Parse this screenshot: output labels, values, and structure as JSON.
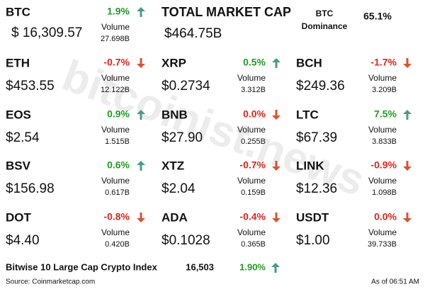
{
  "watermark": "bitcoinist.news",
  "coins": [
    {
      "symbol": "BTC",
      "change": "1.9%",
      "trend": "up",
      "price": "$ 16,309.57",
      "volume_label": "Volume",
      "volume": "27.698B"
    },
    {
      "symbol": "ETH",
      "change": "-0.7%",
      "trend": "down",
      "price": "$453.55",
      "volume_label": "Volume",
      "volume": "12.122B"
    },
    {
      "symbol": "XRP",
      "change": "0.5%",
      "trend": "up",
      "price": "$0.2734",
      "volume_label": "Volume",
      "volume": "3.312B"
    },
    {
      "symbol": "BCH",
      "change": "-1.7%",
      "trend": "down",
      "price": "$249.36",
      "volume_label": "Volume",
      "volume": "3.209B"
    },
    {
      "symbol": "EOS",
      "change": "0.9%",
      "trend": "up",
      "price": "$2.54",
      "volume_label": "Volume",
      "volume": "1.515B"
    },
    {
      "symbol": "BNB",
      "change": "0.0%",
      "trend": "down",
      "price": "$27.90",
      "volume_label": "Volume",
      "volume": "0.255B"
    },
    {
      "symbol": "LTC",
      "change": "7.5%",
      "trend": "up",
      "price": "$67.39",
      "volume_label": "Volume",
      "volume": "3.833B"
    },
    {
      "symbol": "BSV",
      "change": "0.6%",
      "trend": "up",
      "price": "$156.98",
      "volume_label": "Volume",
      "volume": "0.617B"
    },
    {
      "symbol": "XTZ",
      "change": "-0.7%",
      "trend": "down",
      "price": "$2.04",
      "volume_label": "Volume",
      "volume": "0.159B"
    },
    {
      "symbol": "LINK",
      "change": "-0.9%",
      "trend": "down",
      "price": "$12.36",
      "volume_label": "Volume",
      "volume": "1.098B"
    },
    {
      "symbol": "DOT",
      "change": "-0.8%",
      "trend": "down",
      "price": "$4.40",
      "volume_label": "Volume",
      "volume": "0.420B"
    },
    {
      "symbol": "ADA",
      "change": "-0.4%",
      "trend": "down",
      "price": "$0.1028",
      "volume_label": "Volume",
      "volume": "0.365B"
    },
    {
      "symbol": "USDT",
      "change": "0.0%",
      "trend": "down",
      "price": "$1.00",
      "volume_label": "Volume",
      "volume": "39.733B"
    }
  ],
  "market": {
    "title": "TOTAL MARKET CAP",
    "value": "$464.75B"
  },
  "dominance": {
    "label_line1": "BTC",
    "label_line2": "Dominance",
    "value": "65.1%"
  },
  "index": {
    "name": "Bitwise 10 Large Cap Crypto Index",
    "value": "16,503",
    "change": "1.90%",
    "trend": "up"
  },
  "footer": {
    "source": "Source: Coinmarketcap.com",
    "time": "As of 06:51 AM"
  }
}
